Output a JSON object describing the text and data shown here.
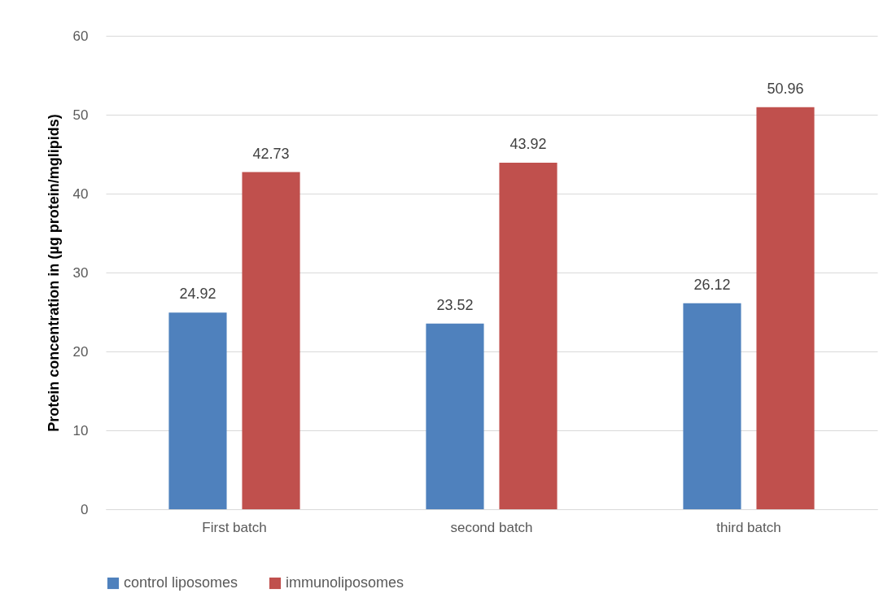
{
  "chart_data": {
    "type": "bar",
    "ylabel": "Protein concentration in (µg protein/mglipids)",
    "categories": [
      "First batch",
      "second batch",
      "third batch"
    ],
    "series": [
      {
        "name": "control liposomes",
        "color": "#4f81bd",
        "values": [
          24.92,
          23.52,
          26.12
        ]
      },
      {
        "name": "immunoliposomes",
        "color": "#c0504d",
        "values": [
          42.73,
          43.92,
          50.96
        ]
      }
    ],
    "ylim": [
      0,
      60
    ],
    "yticks": [
      0,
      10,
      20,
      30,
      40,
      50,
      60
    ],
    "grid": "y",
    "legend": "bottom",
    "data_labels": true
  }
}
